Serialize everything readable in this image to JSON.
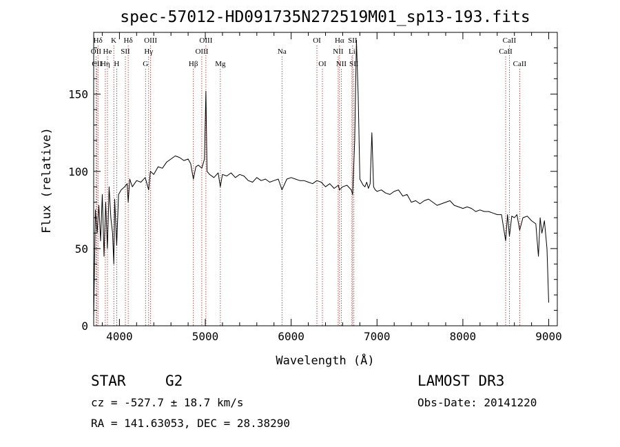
{
  "chart_data": {
    "type": "line",
    "title": "spec-57012-HD091735N272519M01_sp13-193.fits",
    "xlabel": "Wavelength (Å)",
    "ylabel": "Flux (relative)",
    "xlim": [
      3700,
      9100
    ],
    "ylim": [
      0,
      190
    ],
    "xticks": [
      4000,
      5000,
      6000,
      7000,
      8000,
      9000
    ],
    "yticks": [
      0,
      50,
      100,
      150
    ],
    "xtick_labels": [
      "4000",
      "5000",
      "6000",
      "7000",
      "8000",
      "9000"
    ],
    "ytick_labels": [
      "0",
      "50",
      "100",
      "150"
    ],
    "grid": false,
    "line_color": "#000000",
    "marker_color": "#b22222",
    "spectrum": {
      "name": "flux",
      "x": [
        3700,
        3720,
        3740,
        3760,
        3780,
        3800,
        3820,
        3840,
        3860,
        3880,
        3900,
        3920,
        3934,
        3945,
        3968,
        3990,
        4020,
        4060,
        4090,
        4102,
        4120,
        4150,
        4200,
        4250,
        4300,
        4340,
        4360,
        4400,
        4450,
        4500,
        4550,
        4600,
        4650,
        4700,
        4750,
        4800,
        4830,
        4861,
        4890,
        4920,
        4960,
        4990,
        5007,
        5020,
        5050,
        5100,
        5150,
        5175,
        5200,
        5250,
        5300,
        5350,
        5400,
        5450,
        5500,
        5550,
        5600,
        5650,
        5700,
        5750,
        5800,
        5850,
        5893,
        5950,
        6000,
        6050,
        6100,
        6150,
        6200,
        6250,
        6300,
        6350,
        6400,
        6450,
        6500,
        6550,
        6563,
        6600,
        6650,
        6700,
        6716,
        6740,
        6760,
        6780,
        6800,
        6820,
        6840,
        6860,
        6880,
        6900,
        6920,
        6940,
        6960,
        6980,
        7000,
        7050,
        7100,
        7150,
        7200,
        7250,
        7300,
        7350,
        7400,
        7450,
        7500,
        7550,
        7600,
        7650,
        7700,
        7750,
        7800,
        7850,
        7900,
        7950,
        8000,
        8050,
        8100,
        8150,
        8200,
        8250,
        8300,
        8350,
        8400,
        8450,
        8498,
        8520,
        8542,
        8570,
        8600,
        8630,
        8662,
        8700,
        8750,
        8800,
        8850,
        8880,
        8900,
        8920,
        8950,
        8980,
        9000
      ],
      "y": [
        5,
        75,
        60,
        78,
        55,
        85,
        45,
        80,
        50,
        90,
        70,
        60,
        40,
        82,
        52,
        85,
        88,
        90,
        92,
        80,
        95,
        90,
        94,
        93,
        96,
        88,
        100,
        98,
        103,
        102,
        106,
        108,
        110,
        109,
        107,
        108,
        105,
        95,
        103,
        104,
        102,
        108,
        152,
        100,
        98,
        96,
        99,
        90,
        98,
        97,
        99,
        96,
        98,
        97,
        94,
        93,
        96,
        94,
        95,
        93,
        94,
        95,
        88,
        95,
        96,
        95,
        94,
        94,
        93,
        92,
        94,
        93,
        90,
        92,
        89,
        91,
        88,
        90,
        91,
        88,
        85,
        120,
        185,
        150,
        95,
        93,
        91,
        90,
        93,
        89,
        92,
        125,
        90,
        88,
        87,
        88,
        86,
        85,
        87,
        88,
        84,
        85,
        80,
        81,
        79,
        81,
        82,
        80,
        78,
        79,
        80,
        81,
        78,
        77,
        76,
        77,
        76,
        74,
        75,
        74,
        74,
        73,
        72,
        72,
        55,
        72,
        58,
        71,
        70,
        72,
        62,
        70,
        71,
        68,
        66,
        45,
        70,
        60,
        68,
        50,
        15
      ]
    },
    "line_ids": [
      {
        "label": "Hδ",
        "x": 3750,
        "row": 1
      },
      {
        "label": "OII",
        "x": 3727,
        "row": 2
      },
      {
        "label": "CII",
        "x": 3738,
        "row": 3
      },
      {
        "label": "K",
        "x": 3934,
        "row": 1
      },
      {
        "label": "He",
        "x": 3860,
        "row": 2
      },
      {
        "label": "Hη",
        "x": 3835,
        "row": 3
      },
      {
        "label": "Hδ",
        "x": 4102,
        "row": 1
      },
      {
        "label": "SII",
        "x": 4069,
        "row": 2
      },
      {
        "label": "H",
        "x": 3968,
        "row": 3
      },
      {
        "label": "OIII",
        "x": 4363,
        "row": 1
      },
      {
        "label": "Hγ",
        "x": 4340,
        "row": 2
      },
      {
        "label": "G",
        "x": 4304,
        "row": 3
      },
      {
        "label": "OIII",
        "x": 5007,
        "row": 1
      },
      {
        "label": "OIII",
        "x": 4959,
        "row": 2
      },
      {
        "label": "Hβ",
        "x": 4861,
        "row": 3
      },
      {
        "label": "Mg",
        "x": 5175,
        "row": 3
      },
      {
        "label": "Na",
        "x": 5893,
        "row": 2
      },
      {
        "label": "OI",
        "x": 6300,
        "row": 1
      },
      {
        "label": "OI",
        "x": 6364,
        "row": 3
      },
      {
        "label": "Hα",
        "x": 6563,
        "row": 1
      },
      {
        "label": "SII",
        "x": 6716,
        "row": 1
      },
      {
        "label": "NII",
        "x": 6548,
        "row": 2
      },
      {
        "label": "Li",
        "x": 6708,
        "row": 2
      },
      {
        "label": "NII",
        "x": 6584,
        "row": 3
      },
      {
        "label": "SII",
        "x": 6731,
        "row": 3
      },
      {
        "label": "CaII",
        "x": 8542,
        "row": 1
      },
      {
        "label": "CaII",
        "x": 8498,
        "row": 2
      },
      {
        "label": "CaII",
        "x": 8662,
        "row": 3
      }
    ]
  },
  "info": {
    "object_class": "STAR",
    "subclass": "G2",
    "survey": "LAMOST DR3",
    "redshift_line": "cz = -527.7 ± 18.7 km/s",
    "obs_date": "Obs-Date: 20141220",
    "coords": "RA = 141.63053, DEC =  28.38290"
  }
}
